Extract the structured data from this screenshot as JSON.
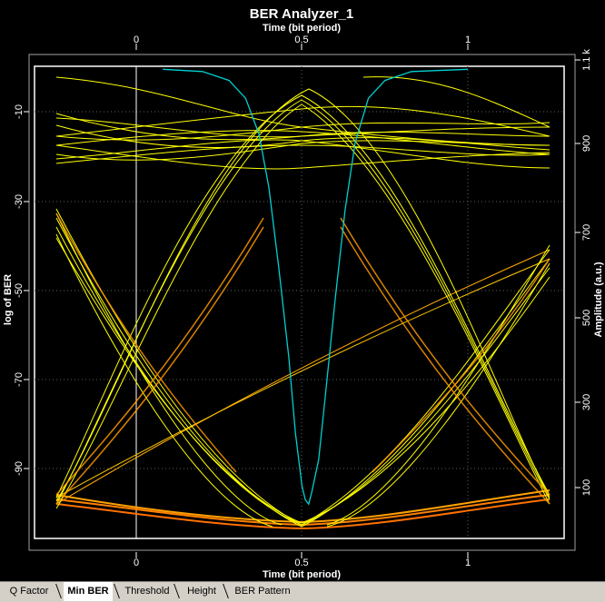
{
  "window": {
    "title": "BER Analyzer_1"
  },
  "axes": {
    "top_label": "Time (bit period)",
    "bottom_label": "Time (bit period)",
    "left_label": "log of BER",
    "right_label": "Amplitude (a.u.)",
    "top_ticks": [
      "0",
      "0.5",
      "1"
    ],
    "bottom_ticks": [
      "0",
      "0.5",
      "1"
    ],
    "left_ticks": [
      "-10",
      "-30",
      "-50",
      "-70",
      "-90"
    ],
    "right_ticks": [
      "1.1 k",
      "900",
      "700",
      "500",
      "300",
      "100"
    ]
  },
  "tabs": [
    {
      "label": "Q Factor",
      "active": false
    },
    {
      "label": "Min BER",
      "active": true
    },
    {
      "label": "Threshold",
      "active": false
    },
    {
      "label": "Height",
      "active": false
    },
    {
      "label": "BER Pattern",
      "active": false
    }
  ],
  "colors": {
    "background": "#000000",
    "eye_traces": "#ffff00",
    "ber_curve": "#00d0d0",
    "threshold_hot": "#ff7f00"
  },
  "chart_data": {
    "type": "line",
    "title": "BER Analyzer_1",
    "xlabel": "Time (bit period)",
    "ylabel": "log of BER",
    "y2label": "Amplitude (a.u.)",
    "xlim": [
      -0.3,
      1.3
    ],
    "ylim_left": [
      -105,
      2
    ],
    "ylim_right": [
      0,
      1100
    ],
    "x_ticks": [
      0,
      0.5,
      1
    ],
    "y_ticks_left": [
      -10,
      -30,
      -50,
      -70,
      -90
    ],
    "y_ticks_right": [
      100,
      300,
      500,
      700,
      900,
      1100
    ],
    "grid": true,
    "series": [
      {
        "x": [
          0.08,
          0.2,
          0.28,
          0.33,
          0.37,
          0.4,
          0.43,
          0.46,
          0.48,
          0.5,
          0.51,
          0.52,
          0.53,
          0.55,
          0.57,
          0.6,
          0.63,
          0.66,
          0.7,
          0.75,
          0.83,
          1.0
        ],
        "y": [
          -0.5,
          -1,
          -3,
          -7,
          -15,
          -27,
          -45,
          -65,
          -82,
          -94,
          -97,
          -98,
          -95,
          -88,
          -74,
          -52,
          -32,
          -17,
          -7,
          -3,
          -1,
          -0.5
        ]
      }
    ]
  }
}
